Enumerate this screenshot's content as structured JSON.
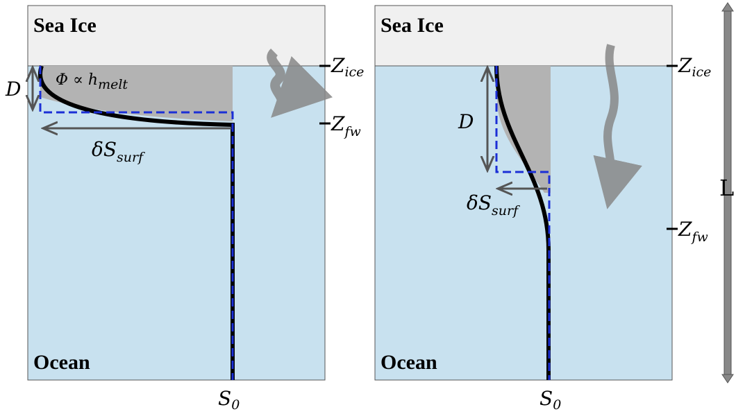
{
  "panels": [
    {
      "top_label": "Sea Ice",
      "bottom_label": "Ocean",
      "depth_label": "D",
      "flux_label": {
        "text": "Φ ∝ h",
        "subscript": "melt"
      },
      "surface_anomaly": {
        "symbol": "δS",
        "subscript": "surf"
      },
      "z_ice": {
        "symbol": "Z",
        "subscript": "ice"
      },
      "z_fw": {
        "symbol": "Z",
        "subscript": "fw"
      },
      "reference_salinity": {
        "symbol": "S",
        "subscript": "0"
      }
    },
    {
      "top_label": "Sea Ice",
      "bottom_label": "Ocean",
      "depth_label": "D",
      "surface_anomaly": {
        "symbol": "δS",
        "subscript": "surf"
      },
      "z_ice": {
        "symbol": "Z",
        "subscript": "ice"
      },
      "z_fw": {
        "symbol": "Z",
        "subscript": "fw"
      },
      "reference_salinity": {
        "symbol": "S",
        "subscript": "0"
      }
    }
  ],
  "length_label": "L"
}
